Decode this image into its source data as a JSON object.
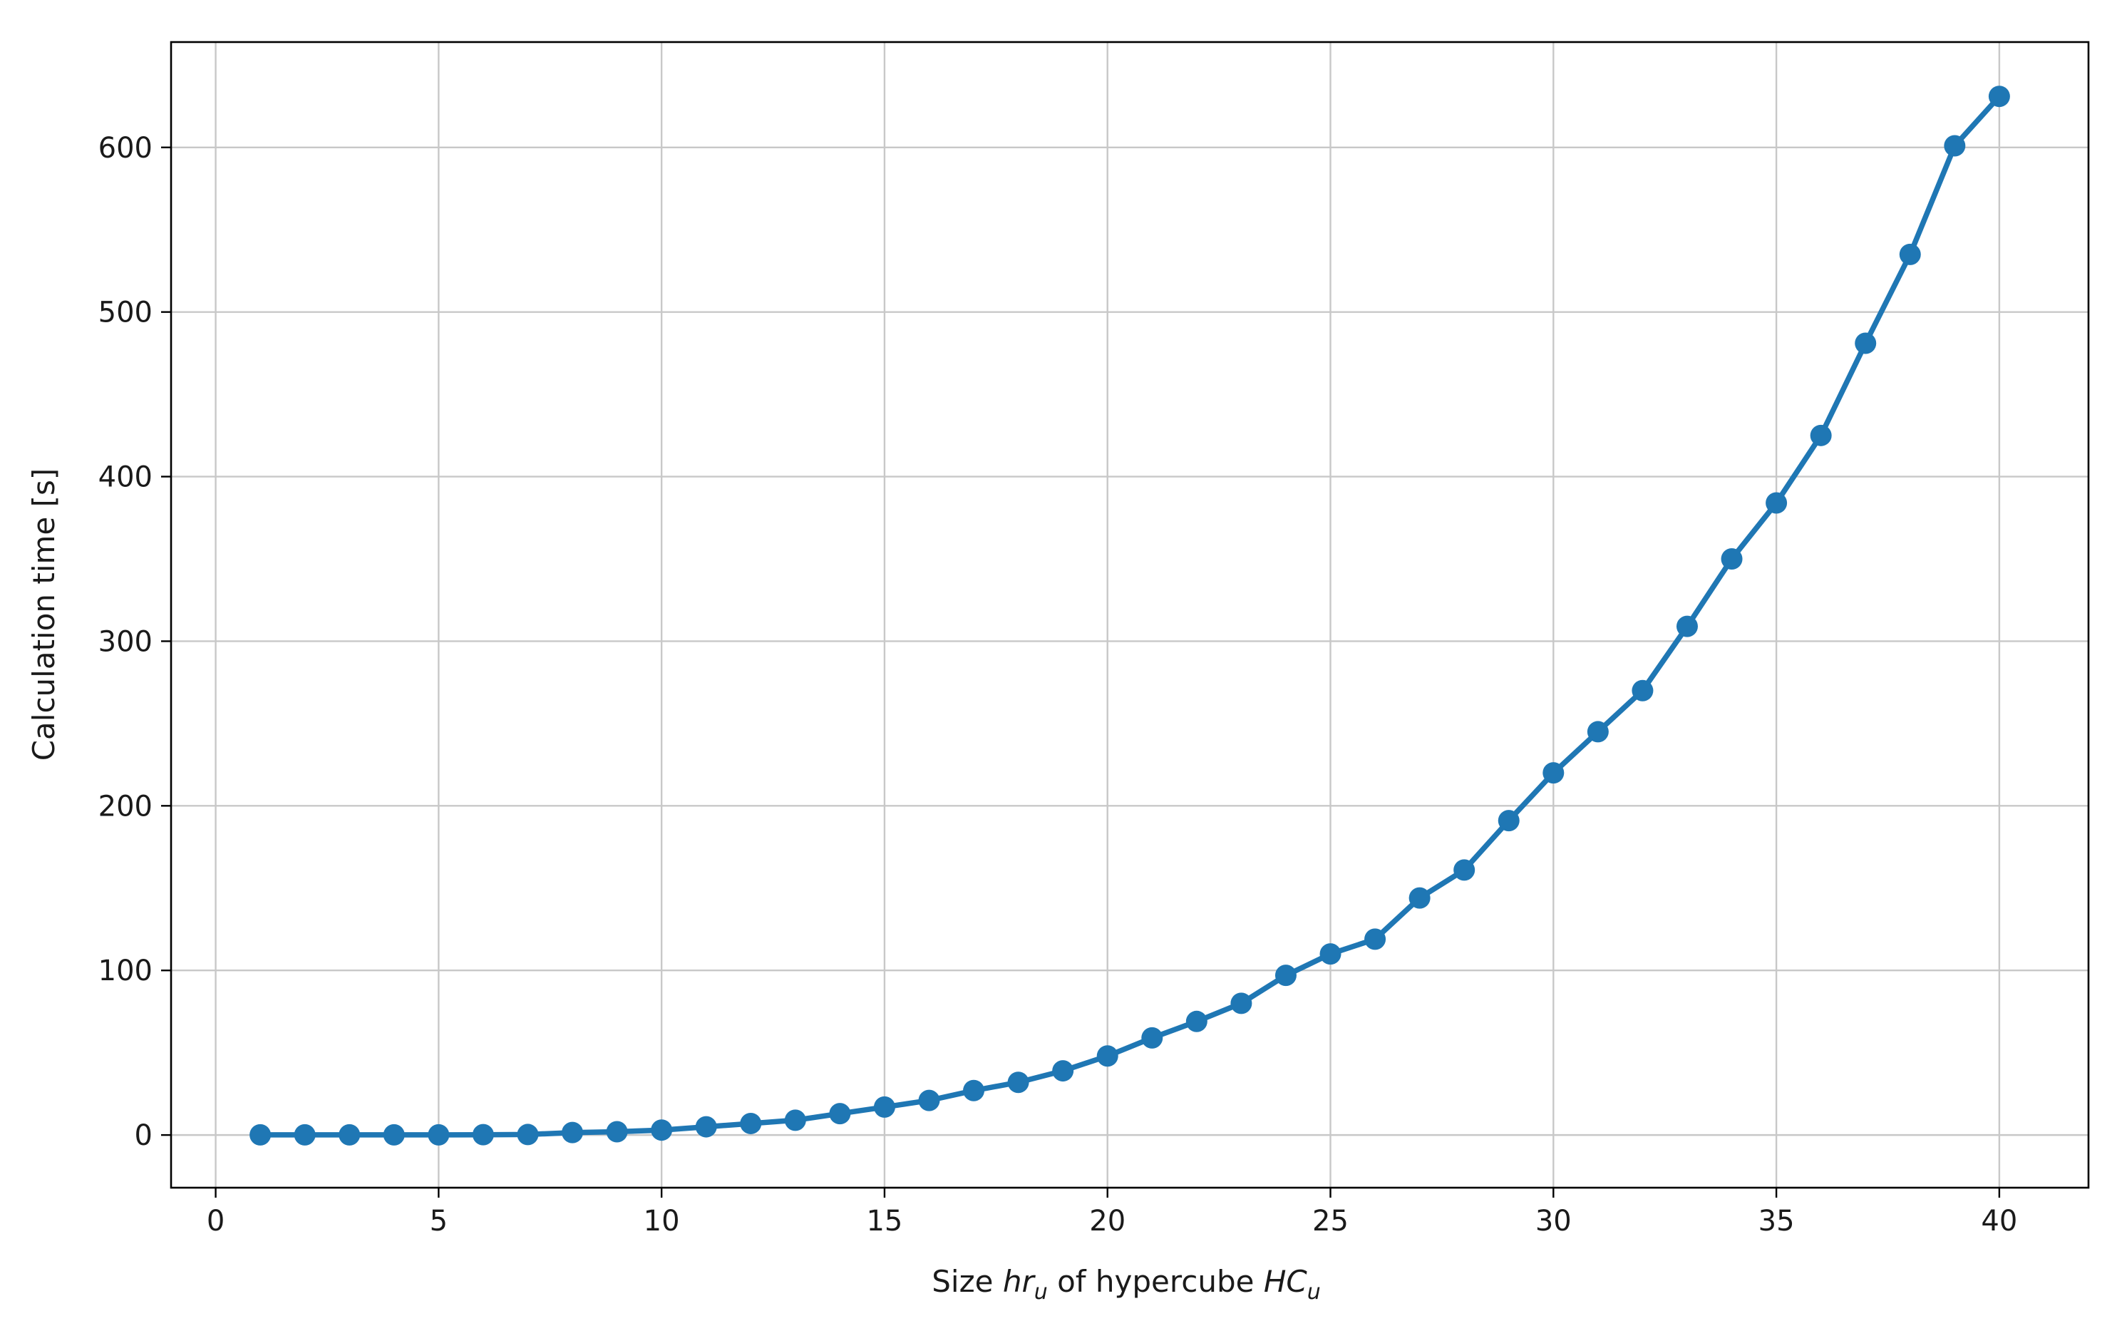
{
  "chart_data": {
    "type": "line",
    "xlabel_parts": [
      "Size ",
      "hr",
      "u",
      " of hypercube ",
      "HC",
      "u"
    ],
    "ylabel": "Calculation time [s]",
    "xlim": [
      -1,
      42
    ],
    "ylim": [
      -32,
      664
    ],
    "xticks": [
      0,
      5,
      10,
      15,
      20,
      25,
      30,
      35,
      40
    ],
    "yticks": [
      0,
      100,
      200,
      300,
      400,
      500,
      600
    ],
    "grid": true,
    "series_color": "#1f77b4",
    "x": [
      1,
      2,
      3,
      4,
      5,
      6,
      7,
      8,
      9,
      10,
      11,
      12,
      13,
      14,
      15,
      16,
      17,
      18,
      19,
      20,
      21,
      22,
      23,
      24,
      25,
      26,
      27,
      28,
      29,
      30,
      31,
      32,
      33,
      34,
      35,
      36,
      37,
      38,
      39,
      40
    ],
    "y": [
      0.1,
      0.1,
      0.1,
      0.1,
      0.1,
      0.2,
      0.3,
      1.5,
      2,
      3,
      5,
      7,
      9,
      13,
      17,
      21,
      27,
      32,
      39,
      48,
      59,
      69,
      80,
      97,
      110,
      119,
      144,
      161,
      191,
      220,
      245,
      270,
      309,
      350,
      384,
      425,
      481,
      535,
      601,
      631
    ]
  }
}
